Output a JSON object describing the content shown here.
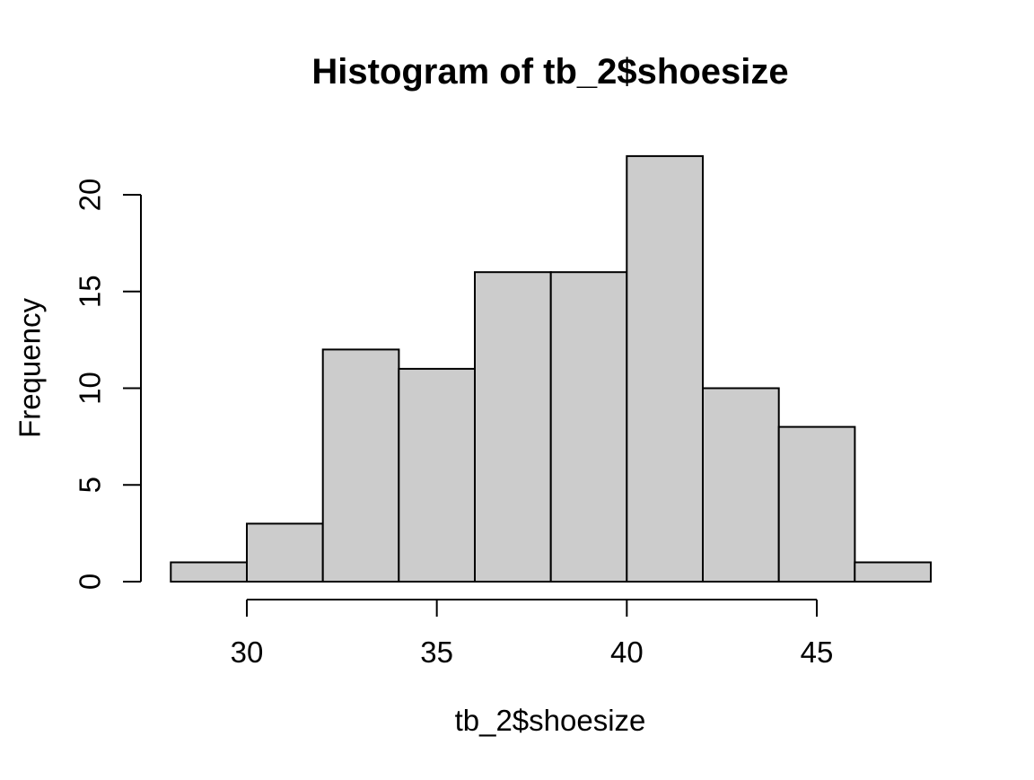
{
  "chart_data": {
    "type": "bar",
    "subtype": "histogram",
    "title": "Histogram of tb_2$shoesize",
    "xlabel": "tb_2$shoesize",
    "ylabel": "Frequency",
    "breaks": [
      28,
      30,
      32,
      34,
      36,
      38,
      40,
      42,
      44,
      46,
      48
    ],
    "counts": [
      1,
      3,
      12,
      11,
      16,
      16,
      22,
      10,
      8,
      1
    ],
    "x_ticks": [
      30,
      35,
      40,
      45
    ],
    "y_ticks": [
      0,
      5,
      10,
      15,
      20
    ],
    "xlim": [
      28,
      48
    ],
    "ylim": [
      0,
      22
    ],
    "grid": false,
    "legend": false,
    "colors": {
      "bar_fill": "#cccccc",
      "bar_stroke": "#000000",
      "axis": "#000000",
      "text": "#000000",
      "background": "#ffffff"
    }
  }
}
